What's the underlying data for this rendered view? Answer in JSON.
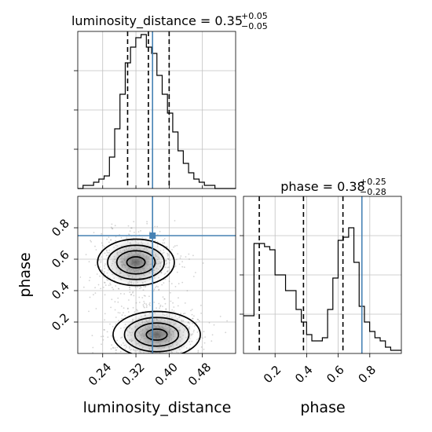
{
  "chart_data": {
    "type": "corner",
    "parameters": [
      "luminosity_distance",
      "phase"
    ],
    "colors": {
      "truth": "#4682b4",
      "line": "#000000",
      "grid": "#c0c0c0",
      "scatter": "#808080"
    },
    "grid": true,
    "marginals": [
      {
        "parameter": "luminosity_distance",
        "title": {
          "main": "luminosity_distance = 0.35",
          "sup": "+0.05",
          "sub": "−0.05"
        },
        "median": 0.35,
        "lower": 0.3,
        "upper": 0.4,
        "truth": 0.36,
        "x_range": [
          0.18,
          0.56
        ],
        "y_max": 1.0,
        "bins_start": 0.18,
        "bin_width": 0.0127,
        "histogram": [
          0.0,
          0.02,
          0.02,
          0.04,
          0.06,
          0.08,
          0.2,
          0.38,
          0.6,
          0.8,
          0.9,
          0.96,
          0.98,
          0.9,
          0.86,
          0.72,
          0.6,
          0.48,
          0.36,
          0.24,
          0.16,
          0.1,
          0.06,
          0.04,
          0.02,
          0.02,
          0.0,
          0.0,
          0.0,
          0.0
        ]
      },
      {
        "parameter": "phase",
        "title": {
          "main": "phase = 0.38",
          "sup": "+0.25",
          "sub": "−0.28"
        },
        "median": 0.38,
        "lower": 0.1,
        "upper": 0.63,
        "truth": 0.75,
        "x_range": [
          0.0,
          1.0
        ],
        "y_max": 1.0,
        "bins_start": 0.0,
        "bin_width": 0.0333,
        "histogram": [
          0.24,
          0.24,
          0.7,
          0.7,
          0.68,
          0.66,
          0.5,
          0.5,
          0.4,
          0.4,
          0.28,
          0.2,
          0.12,
          0.08,
          0.08,
          0.1,
          0.28,
          0.48,
          0.72,
          0.74,
          0.8,
          0.58,
          0.3,
          0.2,
          0.14,
          0.1,
          0.08,
          0.04,
          0.02,
          0.02
        ]
      }
    ],
    "joint": {
      "x_param": "luminosity_distance",
      "y_param": "phase",
      "x_range": [
        0.18,
        0.56
      ],
      "y_range": [
        0.0,
        1.0
      ],
      "truth": [
        0.36,
        0.75
      ],
      "modes": [
        {
          "cx": 0.32,
          "cy": 0.58,
          "sx": 0.044,
          "sy": 0.09,
          "weight": 0.5
        },
        {
          "cx": 0.37,
          "cy": 0.12,
          "sx": 0.05,
          "sy": 0.09,
          "weight": 0.5
        }
      ],
      "contour_levels": [
        0.12,
        0.39,
        0.68,
        0.86
      ]
    },
    "axes": {
      "luminosity_distance": {
        "label": "luminosity_distance",
        "ticks": [
          0.24,
          0.32,
          0.4,
          0.48
        ],
        "tick_labels": [
          "0.24",
          "0.32",
          "0.40",
          "0.48"
        ]
      },
      "phase": {
        "label": "phase",
        "ticks": [
          0.2,
          0.4,
          0.6,
          0.8
        ],
        "tick_labels": [
          "0.2",
          "0.4",
          "0.6",
          "0.8"
        ]
      }
    }
  }
}
